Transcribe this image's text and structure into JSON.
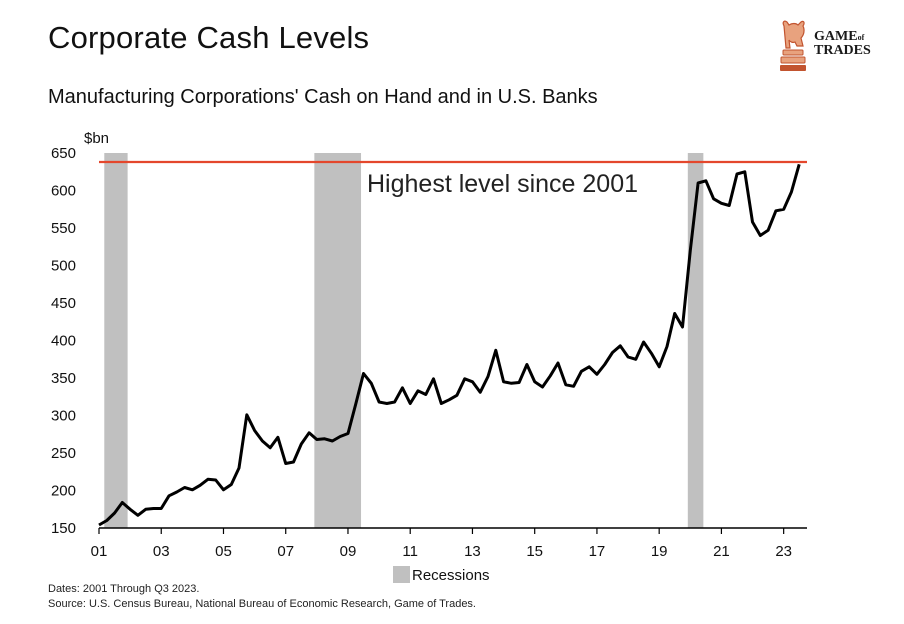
{
  "header": {
    "title": "Corporate Cash Levels",
    "subtitle": "Manufacturing Corporations' Cash on Hand and in U.S. Banks"
  },
  "logo": {
    "line1": "GAME",
    "line2": "of",
    "line3": "TRADES",
    "icon": "bull-chess-knight-icon"
  },
  "footer": {
    "dates": "Dates: 2001 Through Q3 2023.",
    "source": "Source: U.S. Census Bureau, National Bureau of Economic Research, Game of Trades."
  },
  "chart_data": {
    "type": "line",
    "unit_label": "$bn",
    "ylim": [
      150,
      650
    ],
    "y_ticks": [
      150,
      200,
      250,
      300,
      350,
      400,
      450,
      500,
      550,
      600,
      650
    ],
    "xlim": [
      2001,
      2023.75
    ],
    "x_ticks": [
      {
        "value": 2001,
        "label": "01"
      },
      {
        "value": 2003,
        "label": "03"
      },
      {
        "value": 2005,
        "label": "05"
      },
      {
        "value": 2007,
        "label": "07"
      },
      {
        "value": 2009,
        "label": "09"
      },
      {
        "value": 2011,
        "label": "11"
      },
      {
        "value": 2013,
        "label": "13"
      },
      {
        "value": 2015,
        "label": "15"
      },
      {
        "value": 2017,
        "label": "17"
      },
      {
        "value": 2019,
        "label": "19"
      },
      {
        "value": 2021,
        "label": "21"
      },
      {
        "value": 2023,
        "label": "23"
      }
    ],
    "recessions": [
      [
        2001.17,
        2001.92
      ],
      [
        2007.92,
        2009.42
      ],
      [
        2019.92,
        2020.42
      ]
    ],
    "legend": {
      "label": "Recessions",
      "placement": "bottom"
    },
    "reference_line": {
      "value": 638,
      "color": "#e4472c"
    },
    "annotation": "Highest level since 2001",
    "line_color": "#000000",
    "recession_color": "#c0c0c0",
    "series": [
      {
        "x": [
          2001.0,
          2001.25,
          2001.5,
          2001.75,
          2002.0,
          2002.25,
          2002.5,
          2002.75,
          2003.0,
          2003.25,
          2003.5,
          2003.75,
          2004.0,
          2004.25,
          2004.5,
          2004.75,
          2005.0,
          2005.25,
          2005.5,
          2005.75,
          2006.0,
          2006.25,
          2006.5,
          2006.75,
          2007.0,
          2007.25,
          2007.5,
          2007.75,
          2008.0,
          2008.25,
          2008.5,
          2008.75,
          2009.0,
          2009.25,
          2009.5,
          2009.75,
          2010.0,
          2010.25,
          2010.5,
          2010.75,
          2011.0,
          2011.25,
          2011.5,
          2011.75,
          2012.0,
          2012.25,
          2012.5,
          2012.75,
          2013.0,
          2013.25,
          2013.5,
          2013.75,
          2014.0,
          2014.25,
          2014.5,
          2014.75,
          2015.0,
          2015.25,
          2015.5,
          2015.75,
          2016.0,
          2016.25,
          2016.5,
          2016.75,
          2017.0,
          2017.25,
          2017.5,
          2017.75,
          2018.0,
          2018.25,
          2018.5,
          2018.75,
          2019.0,
          2019.25,
          2019.5,
          2019.75,
          2020.0,
          2020.25,
          2020.5,
          2020.75,
          2021.0,
          2021.25,
          2021.5,
          2021.75,
          2022.0,
          2022.25,
          2022.5,
          2022.75,
          2023.0,
          2023.25,
          2023.5
        ],
        "values": [
          154,
          160,
          170,
          184,
          175,
          167,
          175,
          176,
          176,
          193,
          198,
          204,
          201,
          207,
          215,
          214,
          201,
          208,
          230,
          301,
          280,
          266,
          257,
          271,
          236,
          238,
          262,
          277,
          268,
          269,
          266,
          272,
          276,
          315,
          356,
          343,
          318,
          316,
          318,
          337,
          316,
          333,
          328,
          349,
          316,
          321,
          327,
          349,
          345,
          331,
          352,
          387,
          345,
          343,
          344,
          368,
          345,
          338,
          353,
          370,
          341,
          339,
          359,
          365,
          355,
          368,
          384,
          393,
          378,
          375,
          398,
          383,
          365,
          392,
          436,
          418,
          520,
          610,
          613,
          589,
          583,
          580,
          622,
          625,
          558,
          540,
          547,
          573,
          575,
          598,
          635
        ]
      }
    ]
  }
}
